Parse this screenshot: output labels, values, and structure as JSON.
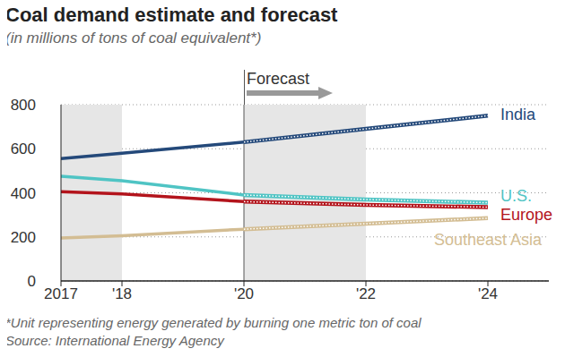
{
  "chart_data": {
    "type": "line",
    "title": "Coal demand estimate and forecast",
    "subtitle": "(in millions of tons of coal equivalent*)",
    "annotation": "Forecast",
    "footnotes": [
      "*Unit representing energy generated by burning one metric ton of coal",
      "Source: International Energy Agency"
    ],
    "x": [
      2017,
      2018,
      2020,
      2022,
      2024
    ],
    "series": [
      {
        "name": "India",
        "color": "#24497a",
        "values": [
          555,
          580,
          630,
          690,
          750
        ]
      },
      {
        "name": "U.S.",
        "color": "#4fc4c4",
        "values": [
          475,
          455,
          390,
          370,
          355
        ]
      },
      {
        "name": "Europe",
        "color": "#b3141c",
        "values": [
          405,
          395,
          360,
          345,
          335
        ]
      },
      {
        "name": "Southeast Asia",
        "color": "#d3bd93",
        "values": [
          195,
          205,
          235,
          260,
          285
        ]
      }
    ],
    "forecast_from": 2020,
    "shaded_ranges": [
      [
        2017,
        2018
      ],
      [
        2020,
        2022
      ]
    ],
    "xlim": [
      2017,
      2025
    ],
    "xticks": [
      2017,
      {
        "value": 2018,
        "label": "'18"
      },
      {
        "value": 2020,
        "label": "'20"
      },
      {
        "value": 2022,
        "label": "'22"
      },
      {
        "value": 2024,
        "label": "'24"
      }
    ],
    "ylim": [
      0,
      800
    ],
    "yticks": [
      0,
      200,
      400,
      600,
      800
    ],
    "grid": true
  }
}
